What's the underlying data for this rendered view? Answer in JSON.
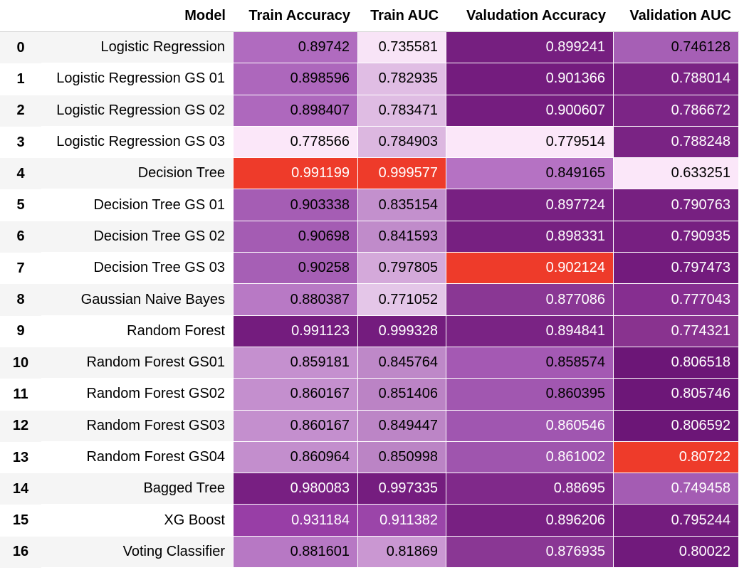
{
  "columns": [
    "",
    "Model",
    "Train Accuracy",
    "Train AUC",
    "Valudation Accuracy",
    "Validation AUC"
  ],
  "rows": [
    {
      "index": "0",
      "model": "Logistic Regression",
      "cells": [
        {
          "v": "0.89742",
          "bg": "#b06bbf",
          "fg": "#000000"
        },
        {
          "v": "0.735581",
          "bg": "#f8e4f7",
          "fg": "#000000"
        },
        {
          "v": "0.899241",
          "bg": "#761f80",
          "fg": "#ffffff"
        },
        {
          "v": "0.746128",
          "bg": "#a65fb5",
          "fg": "#000000"
        }
      ]
    },
    {
      "index": "1",
      "model": "Logistic Regression GS 01",
      "cells": [
        {
          "v": "0.898596",
          "bg": "#ad67bc",
          "fg": "#000000"
        },
        {
          "v": "0.782935",
          "bg": "#e0bde4",
          "fg": "#000000"
        },
        {
          "v": "0.901366",
          "bg": "#741c7e",
          "fg": "#ffffff"
        },
        {
          "v": "0.788014",
          "bg": "#7a2384",
          "fg": "#ffffff"
        }
      ]
    },
    {
      "index": "2",
      "model": "Logistic Regression GS 02",
      "cells": [
        {
          "v": "0.898407",
          "bg": "#ae68bd",
          "fg": "#000000"
        },
        {
          "v": "0.783471",
          "bg": "#dfbce3",
          "fg": "#000000"
        },
        {
          "v": "0.900607",
          "bg": "#751d7f",
          "fg": "#ffffff"
        },
        {
          "v": "0.786672",
          "bg": "#7c2586",
          "fg": "#ffffff"
        }
      ]
    },
    {
      "index": "3",
      "model": "Logistic Regression GS 03",
      "cells": [
        {
          "v": "0.778566",
          "bg": "#fbe7f9",
          "fg": "#000000"
        },
        {
          "v": "0.784903",
          "bg": "#dcb7e0",
          "fg": "#000000"
        },
        {
          "v": "0.779514",
          "bg": "#fbe7f9",
          "fg": "#000000"
        },
        {
          "v": "0.788248",
          "bg": "#7a2384",
          "fg": "#ffffff"
        }
      ]
    },
    {
      "index": "4",
      "model": "Decision Tree",
      "cells": [
        {
          "v": "0.991199",
          "bg": "#ee3b2a",
          "fg": "#ffffff"
        },
        {
          "v": "0.999577",
          "bg": "#ee3b2a",
          "fg": "#ffffff"
        },
        {
          "v": "0.849165",
          "bg": "#b572c3",
          "fg": "#000000"
        },
        {
          "v": "0.633251",
          "bg": "#fbe7f9",
          "fg": "#000000"
        }
      ]
    },
    {
      "index": "5",
      "model": "Decision Tree GS 01",
      "cells": [
        {
          "v": "0.903338",
          "bg": "#a55db4",
          "fg": "#000000"
        },
        {
          "v": "0.835154",
          "bg": "#c390cd",
          "fg": "#000000"
        },
        {
          "v": "0.897724",
          "bg": "#782082",
          "fg": "#ffffff"
        },
        {
          "v": "0.790763",
          "bg": "#772081",
          "fg": "#ffffff"
        }
      ]
    },
    {
      "index": "6",
      "model": "Decision Tree GS 02",
      "cells": [
        {
          "v": "0.90698",
          "bg": "#a45cb3",
          "fg": "#000000"
        },
        {
          "v": "0.841593",
          "bg": "#c08bca",
          "fg": "#000000"
        },
        {
          "v": "0.898331",
          "bg": "#772081",
          "fg": "#ffffff"
        },
        {
          "v": "0.790935",
          "bg": "#771f81",
          "fg": "#ffffff"
        }
      ]
    },
    {
      "index": "7",
      "model": "Decision Tree GS 03",
      "cells": [
        {
          "v": "0.90258",
          "bg": "#a65fb5",
          "fg": "#000000"
        },
        {
          "v": "0.797805",
          "bg": "#d4a9da",
          "fg": "#000000"
        },
        {
          "v": "0.902124",
          "bg": "#ee3b2a",
          "fg": "#ffffff"
        },
        {
          "v": "0.797473",
          "bg": "#731b7d",
          "fg": "#ffffff"
        }
      ]
    },
    {
      "index": "8",
      "model": "Gaussian Naive Bayes",
      "cells": [
        {
          "v": "0.880387",
          "bg": "#b879c5",
          "fg": "#000000"
        },
        {
          "v": "0.771052",
          "bg": "#e4c6e8",
          "fg": "#000000"
        },
        {
          "v": "0.877086",
          "bg": "#8a3794",
          "fg": "#ffffff"
        },
        {
          "v": "0.777043",
          "bg": "#862e90",
          "fg": "#ffffff"
        }
      ]
    },
    {
      "index": "9",
      "model": "Random Forest",
      "cells": [
        {
          "v": "0.991123",
          "bg": "#741c7e",
          "fg": "#ffffff"
        },
        {
          "v": "0.999328",
          "bg": "#741c7e",
          "fg": "#ffffff"
        },
        {
          "v": "0.894841",
          "bg": "#7a2384",
          "fg": "#ffffff"
        },
        {
          "v": "0.774321",
          "bg": "#89338f",
          "fg": "#ffffff"
        }
      ]
    },
    {
      "index": "10",
      "model": "Random Forest GS01",
      "cells": [
        {
          "v": "0.859181",
          "bg": "#c590cf",
          "fg": "#000000"
        },
        {
          "v": "0.845764",
          "bg": "#be88c8",
          "fg": "#000000"
        },
        {
          "v": "0.858574",
          "bg": "#a459b3",
          "fg": "#000000"
        },
        {
          "v": "0.806518",
          "bg": "#6c1677",
          "fg": "#ffffff"
        }
      ]
    },
    {
      "index": "11",
      "model": "Random Forest GS02",
      "cells": [
        {
          "v": "0.860167",
          "bg": "#c48fce",
          "fg": "#000000"
        },
        {
          "v": "0.851406",
          "bg": "#bb83c5",
          "fg": "#000000"
        },
        {
          "v": "0.860395",
          "bg": "#a157b0",
          "fg": "#000000"
        },
        {
          "v": "0.805746",
          "bg": "#6d1778",
          "fg": "#ffffff"
        }
      ]
    },
    {
      "index": "12",
      "model": "Random Forest GS03",
      "cells": [
        {
          "v": "0.860167",
          "bg": "#c48fce",
          "fg": "#000000"
        },
        {
          "v": "0.849447",
          "bg": "#bc85c6",
          "fg": "#000000"
        },
        {
          "v": "0.860546",
          "bg": "#a056b0",
          "fg": "#ffffff"
        },
        {
          "v": "0.806592",
          "bg": "#6c1677",
          "fg": "#ffffff"
        }
      ]
    },
    {
      "index": "13",
      "model": "Random Forest GS04",
      "cells": [
        {
          "v": "0.860964",
          "bg": "#c38ecd",
          "fg": "#000000"
        },
        {
          "v": "0.850998",
          "bg": "#bb84c5",
          "fg": "#000000"
        },
        {
          "v": "0.861002",
          "bg": "#9f55ae",
          "fg": "#ffffff"
        },
        {
          "v": "0.80722",
          "bg": "#ee3b2a",
          "fg": "#ffffff"
        }
      ]
    },
    {
      "index": "14",
      "model": "Bagged Tree",
      "cells": [
        {
          "v": "0.980083",
          "bg": "#781f82",
          "fg": "#ffffff"
        },
        {
          "v": "0.997335",
          "bg": "#751d7f",
          "fg": "#ffffff"
        },
        {
          "v": "0.88695",
          "bg": "#80298a",
          "fg": "#ffffff"
        },
        {
          "v": "0.749458",
          "bg": "#a45cb3",
          "fg": "#ffffff"
        }
      ]
    },
    {
      "index": "15",
      "model": "XG Boost",
      "cells": [
        {
          "v": "0.931184",
          "bg": "#983ea6",
          "fg": "#ffffff"
        },
        {
          "v": "0.911382",
          "bg": "#9b45a9",
          "fg": "#ffffff"
        },
        {
          "v": "0.896206",
          "bg": "#782082",
          "fg": "#ffffff"
        },
        {
          "v": "0.795244",
          "bg": "#741c7e",
          "fg": "#ffffff"
        }
      ]
    },
    {
      "index": "16",
      "model": "Voting Classifier",
      "cells": [
        {
          "v": "0.881601",
          "bg": "#b778c4",
          "fg": "#000000"
        },
        {
          "v": "0.81869",
          "bg": "#ca97d2",
          "fg": "#000000"
        },
        {
          "v": "0.876935",
          "bg": "#8a3794",
          "fg": "#ffffff"
        },
        {
          "v": "0.80022",
          "bg": "#711a7c",
          "fg": "#ffffff"
        }
      ]
    }
  ]
}
